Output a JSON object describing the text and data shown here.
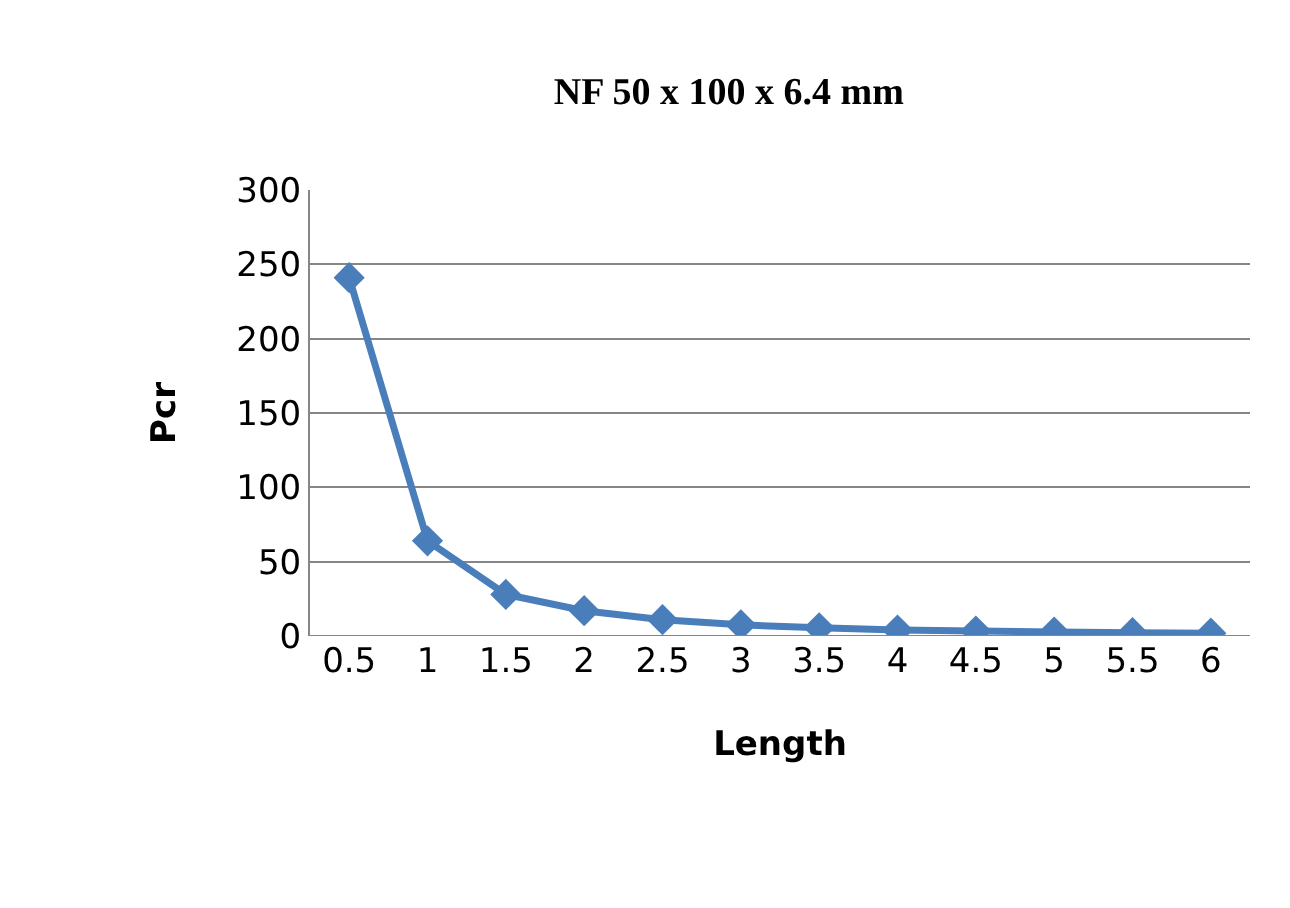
{
  "chart_data": {
    "type": "line",
    "title": "NF 50 x 100 x 6.4 mm",
    "xlabel": "Length",
    "ylabel": "Pcr",
    "categories": [
      "0.5",
      "1",
      "1.5",
      "2",
      "2.5",
      "3",
      "3.5",
      "4",
      "4.5",
      "5",
      "5.5",
      "6"
    ],
    "series": [
      {
        "color": "#4a7ebb",
        "values": [
          241,
          64,
          28,
          17,
          11,
          7.5,
          5.5,
          4,
          3.3,
          2.7,
          2.2,
          1.9
        ]
      }
    ],
    "ylim": [
      0,
      300
    ],
    "yticks": [
      0,
      50,
      100,
      150,
      200,
      250,
      300
    ],
    "grid": "y",
    "legend": false,
    "marker": "diamond",
    "line_style": "solid"
  }
}
